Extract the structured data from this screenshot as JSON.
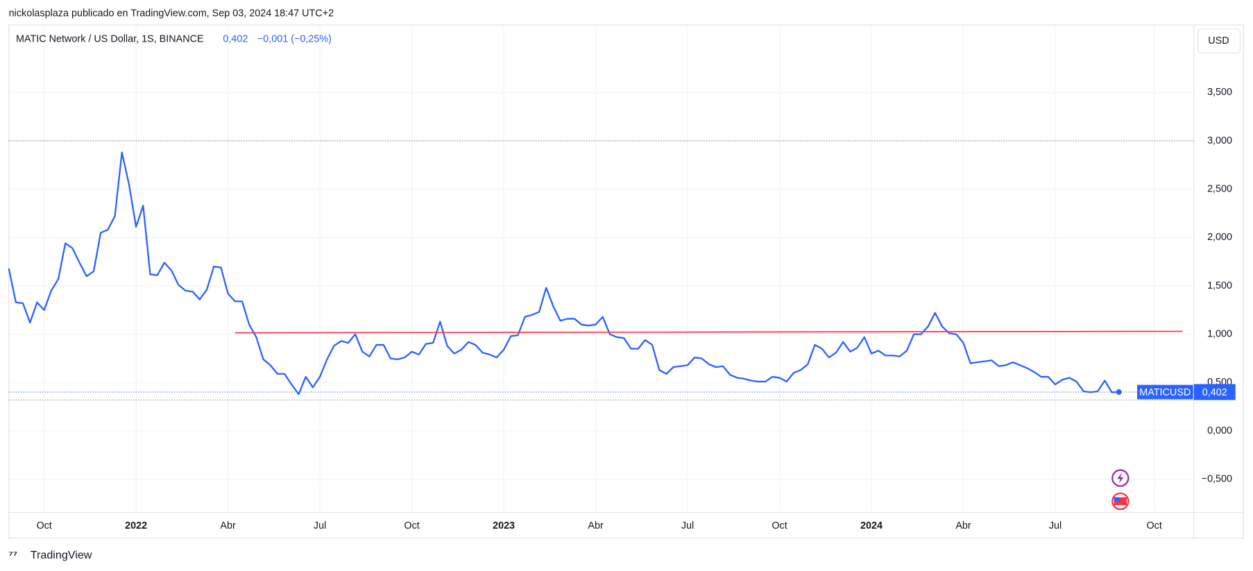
{
  "header": {
    "publisher": "nickolasplaza publicado en TradingView.com, Sep 03, 2024 18:47 UTC+2",
    "symbol": "MATIC Network / US Dollar, 1S, BINANCE",
    "price": "0,402",
    "change": "−0,001 (−0,25%)",
    "currency": "USD"
  },
  "price_tag": {
    "ticker": "MATICUSD",
    "price": "0,402"
  },
  "footer": {
    "brand": "TradingView"
  },
  "chart_data": {
    "type": "line",
    "series": [
      {
        "name": "MATICUSD",
        "color": "#2962ff",
        "values": [
          1.68,
          1.33,
          1.32,
          1.12,
          1.33,
          1.25,
          1.45,
          1.57,
          1.94,
          1.89,
          1.74,
          1.6,
          1.65,
          2.05,
          2.08,
          2.22,
          2.88,
          2.55,
          2.11,
          2.33,
          1.62,
          1.61,
          1.74,
          1.66,
          1.51,
          1.45,
          1.44,
          1.36,
          1.46,
          1.7,
          1.69,
          1.42,
          1.34,
          1.34,
          1.1,
          0.97,
          0.74,
          0.68,
          0.59,
          0.59,
          0.48,
          0.38,
          0.56,
          0.45,
          0.56,
          0.74,
          0.88,
          0.93,
          0.91,
          1.0,
          0.82,
          0.77,
          0.89,
          0.89,
          0.75,
          0.74,
          0.76,
          0.82,
          0.79,
          0.9,
          0.91,
          1.13,
          0.88,
          0.8,
          0.84,
          0.92,
          0.89,
          0.81,
          0.79,
          0.76,
          0.84,
          0.98,
          0.99,
          1.18,
          1.2,
          1.23,
          1.48,
          1.29,
          1.14,
          1.16,
          1.16,
          1.1,
          1.09,
          1.1,
          1.18,
          1.0,
          0.97,
          0.96,
          0.85,
          0.85,
          0.94,
          0.89,
          0.63,
          0.59,
          0.66,
          0.67,
          0.68,
          0.76,
          0.75,
          0.69,
          0.66,
          0.67,
          0.58,
          0.55,
          0.54,
          0.52,
          0.51,
          0.51,
          0.56,
          0.55,
          0.51,
          0.6,
          0.63,
          0.69,
          0.89,
          0.85,
          0.76,
          0.81,
          0.92,
          0.82,
          0.86,
          0.97,
          0.8,
          0.83,
          0.78,
          0.78,
          0.77,
          0.83,
          1.0,
          1.0,
          1.08,
          1.22,
          1.08,
          1.01,
          1.0,
          0.91,
          0.7,
          0.71,
          0.72,
          0.73,
          0.67,
          0.68,
          0.71,
          0.68,
          0.65,
          0.61,
          0.56,
          0.56,
          0.48,
          0.53,
          0.55,
          0.51,
          0.41,
          0.4,
          0.41,
          0.52,
          0.4,
          0.402
        ]
      }
    ],
    "trendline": {
      "x": [
        32,
        166
      ],
      "values": [
        1.015,
        1.03
      ],
      "color": "#f23645"
    },
    "hlines": [
      3.0,
      0.32
    ],
    "xlim": [
      0,
      167.6
    ],
    "xticks": [
      {
        "value": 5,
        "label": "Oct"
      },
      {
        "value": 18,
        "label": "2022"
      },
      {
        "value": 31,
        "label": "Abr"
      },
      {
        "value": 44,
        "label": "Jul"
      },
      {
        "value": 57,
        "label": "Oct"
      },
      {
        "value": 70,
        "label": "2023"
      },
      {
        "value": 83,
        "label": "Abr"
      },
      {
        "value": 96,
        "label": "Jul"
      },
      {
        "value": 109,
        "label": "Oct"
      },
      {
        "value": 122,
        "label": "2024"
      },
      {
        "value": 135,
        "label": "Abr"
      },
      {
        "value": 148,
        "label": "Jul"
      },
      {
        "value": 162,
        "label": "Oct"
      }
    ],
    "ylim": [
      -0.843,
      4.198
    ],
    "yticks": [
      {
        "value": -0.5,
        "label": "−0,500"
      },
      {
        "value": 0,
        "label": "0,000"
      },
      {
        "value": 0.5,
        "label": "0,500"
      },
      {
        "value": 1,
        "label": "1,000"
      },
      {
        "value": 1.5,
        "label": "1,500"
      },
      {
        "value": 2,
        "label": "2,000"
      },
      {
        "value": 2.5,
        "label": "2,500"
      },
      {
        "value": 3,
        "label": "3,000"
      },
      {
        "value": 3.5,
        "label": "3,500"
      }
    ],
    "grid": true
  }
}
